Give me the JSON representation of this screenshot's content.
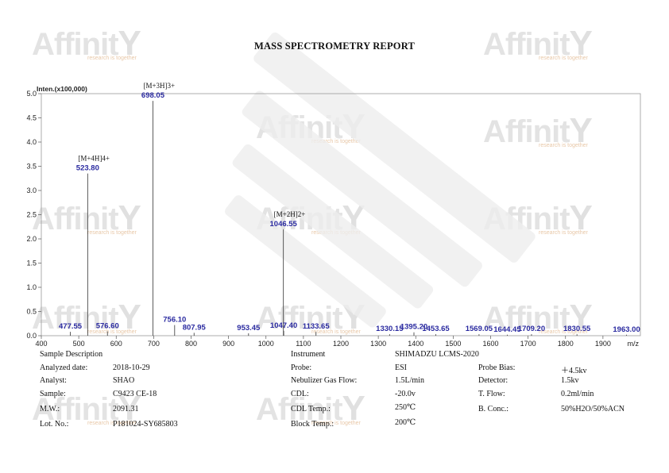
{
  "report": {
    "title": "MASS SPECTROMETRY REPORT"
  },
  "watermark": {
    "brand": "Affinit",
    "tagline": "research is together"
  },
  "chart_data": {
    "type": "bar",
    "ylabel": "Inten.(x100,000)",
    "xlabel": "m/z",
    "xlim": [
      400,
      2000
    ],
    "ylim": [
      0,
      5.0
    ],
    "x_ticks": [
      400,
      500,
      600,
      700,
      800,
      900,
      1000,
      1100,
      1200,
      1300,
      1400,
      1500,
      1600,
      1700,
      1800,
      1900
    ],
    "y_ticks": [
      "0.0",
      "0.5",
      "1.0",
      "1.5",
      "2.0",
      "2.5",
      "3.0",
      "3.5",
      "4.0",
      "4.5",
      "5.0"
    ],
    "grid": false,
    "peaks": [
      {
        "mz": 477.55,
        "intensity": 0.08,
        "label": "477.55"
      },
      {
        "mz": 523.8,
        "intensity": 3.35,
        "label": "523.80"
      },
      {
        "mz": 576.6,
        "intensity": 0.09,
        "label": "576.60"
      },
      {
        "mz": 698.05,
        "intensity": 4.85,
        "label": "698.05"
      },
      {
        "mz": 756.1,
        "intensity": 0.22,
        "label": "756.10"
      },
      {
        "mz": 807.95,
        "intensity": 0.06,
        "label": "807.95"
      },
      {
        "mz": 953.45,
        "intensity": 0.05,
        "label": "953.45"
      },
      {
        "mz": 1046.55,
        "intensity": 2.2,
        "label": "1046.55"
      },
      {
        "mz": 1047.4,
        "intensity": 0.1,
        "label": "1047.40"
      },
      {
        "mz": 1133.65,
        "intensity": 0.08,
        "label": "1133.65"
      },
      {
        "mz": 1330.15,
        "intensity": 0.03,
        "label": "1330.15"
      },
      {
        "mz": 1395.2,
        "intensity": 0.07,
        "label": "1395.20"
      },
      {
        "mz": 1453.65,
        "intensity": 0.03,
        "label": "1453.65"
      },
      {
        "mz": 1569.05,
        "intensity": 0.03,
        "label": "1569.05"
      },
      {
        "mz": 1644.45,
        "intensity": 0.02,
        "label": "1644.45"
      },
      {
        "mz": 1709.2,
        "intensity": 0.03,
        "label": "1709.20"
      },
      {
        "mz": 1830.55,
        "intensity": 0.03,
        "label": "1830.55"
      },
      {
        "mz": 1963.0,
        "intensity": 0.02,
        "label": "1963.00"
      }
    ],
    "annotations": [
      {
        "mz": 523.8,
        "text": "[M+4H]4+"
      },
      {
        "mz": 698.05,
        "text": "[M+3H]3+"
      },
      {
        "mz": 1046.55,
        "text": "[M+2H]2+"
      }
    ]
  },
  "info": {
    "sample_description_label": "Sample Description",
    "instrument_label": "Instrument",
    "instrument_value": "SHIMADZU LCMS-2020",
    "left": [
      {
        "label": "Analyzed date:",
        "value": "2018-10-29"
      },
      {
        "label": "Analyst:",
        "value": "SHAO"
      },
      {
        "label": "Sample:",
        "value": "C9423 CE-18"
      },
      {
        "label": "M.W.:",
        "value": "2091.31"
      },
      {
        "label": "Lot. No.:",
        "value": "P181024-SY685803"
      }
    ],
    "middle": [
      {
        "label": "Probe:",
        "value": "ESI"
      },
      {
        "label": "Nebulizer Gas Flow:",
        "value": "1.5L/min"
      },
      {
        "label": "CDL:",
        "value": "-20.0v"
      },
      {
        "label": "CDL Temp.:",
        "value": "250℃"
      },
      {
        "label": "Block Temp.:",
        "value": "200℃"
      }
    ],
    "right": [
      {
        "label": "Probe Bias:",
        "value": "＋4.5kv"
      },
      {
        "label": "Detector:",
        "value": "1.5kv"
      },
      {
        "label": "T. Flow:",
        "value": "0.2ml/min"
      },
      {
        "label": "B. Conc.:",
        "value": "50%H2O/50%ACN"
      }
    ]
  }
}
